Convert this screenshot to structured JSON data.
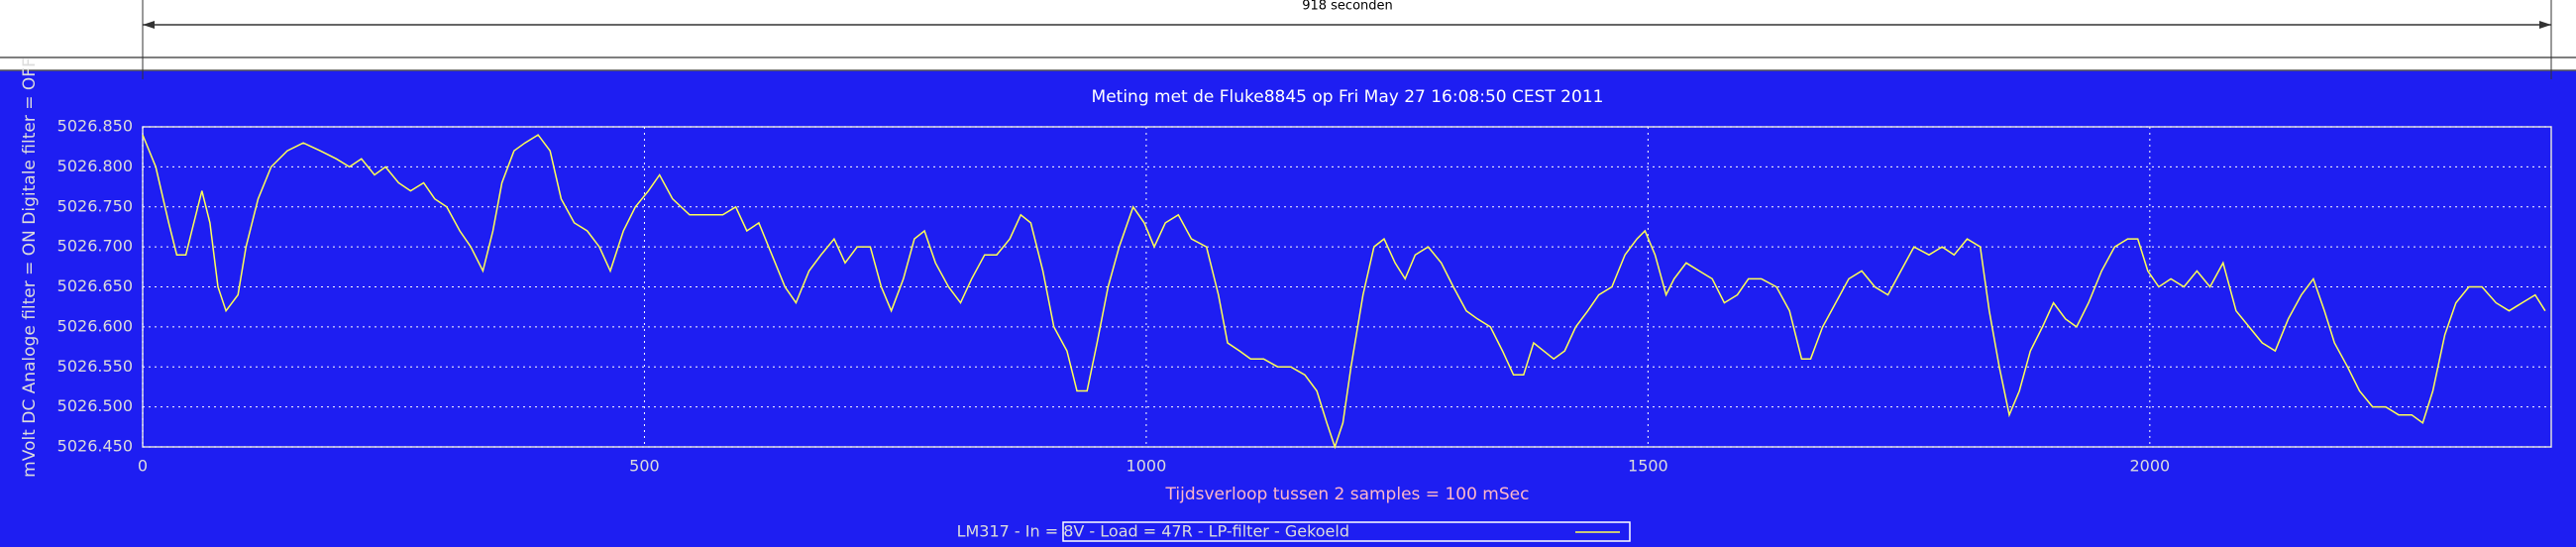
{
  "chart_data": {
    "type": "line",
    "title": "Meting met de Fluke8845 op Fri May 27 16:08:50 CEST 2011",
    "annotation": "918 seconden",
    "x_label": "Tijdsverloop tussen 2 samples = 100 mSec",
    "y_label": "mVolt DC   Analoge filter = ON   Digitale filter = OFF",
    "grid": true,
    "legend": "bottom",
    "background": "#1e1ef2",
    "xlim": [
      0,
      2400
    ],
    "xticks": [
      0,
      500,
      1000,
      1500,
      2000
    ],
    "ylim": [
      5026.45,
      5026.85
    ],
    "yticks": [
      {
        "value": 5026.45,
        "label": "5026.450"
      },
      {
        "value": 5026.5,
        "label": "5026.500"
      },
      {
        "value": 5026.55,
        "label": "5026.550"
      },
      {
        "value": 5026.6,
        "label": "5026.600"
      },
      {
        "value": 5026.65,
        "label": "5026.650"
      },
      {
        "value": 5026.7,
        "label": "5026.700"
      },
      {
        "value": 5026.75,
        "label": "5026.750"
      },
      {
        "value": 5026.8,
        "label": "5026.800"
      },
      {
        "value": 5026.85,
        "label": "5026.850"
      }
    ],
    "x": [
      0,
      13,
      26,
      34,
      43,
      49,
      59,
      67,
      75,
      83,
      95,
      103,
      115,
      128,
      144,
      160,
      177,
      193,
      206,
      218,
      231,
      242,
      255,
      267,
      280,
      291,
      303,
      316,
      327,
      339,
      349,
      358,
      370,
      381,
      394,
      406,
      417,
      430,
      443,
      455,
      466,
      479,
      491,
      504,
      515,
      528,
      545,
      561,
      578,
      591,
      602,
      614,
      627,
      640,
      651,
      664,
      676,
      689,
      700,
      712,
      725,
      736,
      746,
      758,
      769,
      779,
      790,
      803,
      815,
      826,
      839,
      851,
      864,
      875,
      885,
      897,
      908,
      921,
      931,
      941,
      951,
      962,
      973,
      987,
      998,
      1008,
      1019,
      1032,
      1045,
      1060,
      1072,
      1081,
      1093,
      1104,
      1117,
      1131,
      1144,
      1158,
      1170,
      1180,
      1188,
      1196,
      1204,
      1216,
      1227,
      1237,
      1248,
      1258,
      1268,
      1281,
      1294,
      1306,
      1319,
      1330,
      1343,
      1355,
      1366,
      1376,
      1386,
      1396,
      1406,
      1417,
      1428,
      1440,
      1451,
      1464,
      1477,
      1489,
      1497,
      1507,
      1518,
      1526,
      1538,
      1551,
      1564,
      1576,
      1589,
      1600,
      1613,
      1628,
      1641,
      1653,
      1662,
      1674,
      1687,
      1700,
      1713,
      1726,
      1739,
      1752,
      1765,
      1780,
      1793,
      1805,
      1818,
      1831,
      1840,
      1850,
      1860,
      1870,
      1881,
      1893,
      1904,
      1916,
      1927,
      1939,
      1952,
      1965,
      1978,
      1988,
      1998,
      2009,
      2021,
      2034,
      2047,
      2060,
      2073,
      2086,
      2099,
      2112,
      2125,
      2138,
      2151,
      2163,
      2174,
      2184,
      2197,
      2209,
      2222,
      2235,
      2248,
      2261,
      2272,
      2282,
      2294,
      2305,
      2318,
      2331,
      2345,
      2358,
      2371,
      2384,
      2394
    ],
    "series": [
      {
        "name": "LM317 - In = 8V - Load = 47R - LP-filter - Gekoeld",
        "color": "#ffff55",
        "values": [
          5026.84,
          5026.8,
          5026.73,
          5026.69,
          5026.69,
          5026.72,
          5026.77,
          5026.73,
          5026.65,
          5026.62,
          5026.64,
          5026.7,
          5026.76,
          5026.8,
          5026.82,
          5026.83,
          5026.82,
          5026.81,
          5026.8,
          5026.81,
          5026.79,
          5026.8,
          5026.78,
          5026.77,
          5026.78,
          5026.76,
          5026.75,
          5026.72,
          5026.7,
          5026.67,
          5026.72,
          5026.78,
          5026.82,
          5026.83,
          5026.84,
          5026.82,
          5026.76,
          5026.73,
          5026.72,
          5026.7,
          5026.67,
          5026.72,
          5026.75,
          5026.77,
          5026.79,
          5026.76,
          5026.74,
          5026.74,
          5026.74,
          5026.75,
          5026.72,
          5026.73,
          5026.69,
          5026.65,
          5026.63,
          5026.67,
          5026.69,
          5026.71,
          5026.68,
          5026.7,
          5026.7,
          5026.65,
          5026.62,
          5026.66,
          5026.71,
          5026.72,
          5026.68,
          5026.65,
          5026.63,
          5026.66,
          5026.69,
          5026.69,
          5026.71,
          5026.74,
          5026.73,
          5026.67,
          5026.6,
          5026.57,
          5026.52,
          5026.52,
          5026.58,
          5026.65,
          5026.7,
          5026.75,
          5026.73,
          5026.7,
          5026.73,
          5026.74,
          5026.71,
          5026.7,
          5026.64,
          5026.58,
          5026.57,
          5026.56,
          5026.56,
          5026.55,
          5026.55,
          5026.54,
          5026.52,
          5026.48,
          5026.45,
          5026.48,
          5026.55,
          5026.64,
          5026.7,
          5026.71,
          5026.68,
          5026.66,
          5026.69,
          5026.7,
          5026.68,
          5026.65,
          5026.62,
          5026.61,
          5026.6,
          5026.57,
          5026.54,
          5026.54,
          5026.58,
          5026.57,
          5026.56,
          5026.57,
          5026.6,
          5026.62,
          5026.64,
          5026.65,
          5026.69,
          5026.71,
          5026.72,
          5026.69,
          5026.64,
          5026.66,
          5026.68,
          5026.67,
          5026.66,
          5026.63,
          5026.64,
          5026.66,
          5026.66,
          5026.65,
          5026.62,
          5026.56,
          5026.56,
          5026.6,
          5026.63,
          5026.66,
          5026.67,
          5026.65,
          5026.64,
          5026.67,
          5026.7,
          5026.69,
          5026.7,
          5026.69,
          5026.71,
          5026.7,
          5026.62,
          5026.55,
          5026.49,
          5026.52,
          5026.57,
          5026.6,
          5026.63,
          5026.61,
          5026.6,
          5026.63,
          5026.67,
          5026.7,
          5026.71,
          5026.71,
          5026.67,
          5026.65,
          5026.66,
          5026.65,
          5026.67,
          5026.65,
          5026.68,
          5026.62,
          5026.6,
          5026.58,
          5026.57,
          5026.61,
          5026.64,
          5026.66,
          5026.62,
          5026.58,
          5026.55,
          5026.52,
          5026.5,
          5026.5,
          5026.49,
          5026.49,
          5026.48,
          5026.52,
          5026.59,
          5026.63,
          5026.65,
          5026.65,
          5026.63,
          5026.62,
          5026.63,
          5026.64,
          5026.62
        ]
      }
    ]
  }
}
